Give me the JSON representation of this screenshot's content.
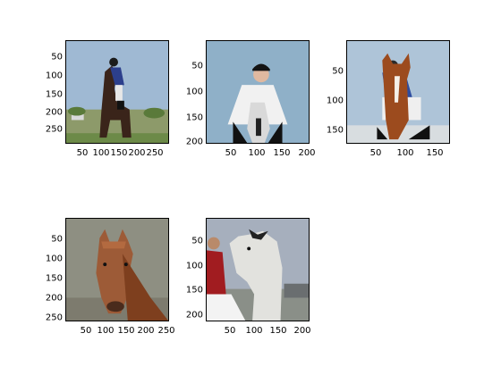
{
  "figure": {
    "background": "#ffffff",
    "panels": [
      {
        "id": "p1",
        "subject": "rider-on-dark-horse",
        "x_ticks": [
          "50",
          "100",
          "150",
          "200",
          "250"
        ],
        "y_ticks": [
          "50",
          "100",
          "150",
          "200",
          "250"
        ]
      },
      {
        "id": "p2",
        "subject": "rider-on-grey-horse",
        "x_ticks": [
          "50",
          "100",
          "150",
          "200"
        ],
        "y_ticks": [
          "50",
          "100",
          "150",
          "200"
        ]
      },
      {
        "id": "p3",
        "subject": "rider-on-chestnut-horse",
        "x_ticks": [
          "50",
          "100",
          "150"
        ],
        "y_ticks": [
          "50",
          "100",
          "150"
        ]
      },
      {
        "id": "p4",
        "subject": "chestnut-horse-head",
        "x_ticks": [
          "50",
          "100",
          "150",
          "200",
          "250"
        ],
        "y_ticks": [
          "50",
          "100",
          "150",
          "200",
          "250"
        ]
      },
      {
        "id": "p5",
        "subject": "grey-horse-and-handler",
        "x_ticks": [
          "50",
          "100",
          "150",
          "200"
        ],
        "y_ticks": [
          "50",
          "100",
          "150",
          "200"
        ]
      }
    ]
  }
}
